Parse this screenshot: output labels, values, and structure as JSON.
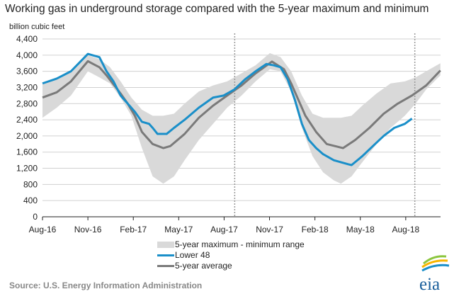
{
  "chart_data": {
    "type": "line",
    "title": "Working gas in underground storage compared with the 5-year maximum and minimum",
    "ylabel": "billion cubic feet",
    "xlabel": "",
    "x_units": "months since Aug-2016",
    "xlim": [
      0,
      26.3
    ],
    "ylim": [
      0,
      4400
    ],
    "yticks": [
      0,
      400,
      800,
      1200,
      1600,
      2000,
      2400,
      2800,
      3200,
      3600,
      4000,
      4400
    ],
    "ytick_labels": [
      "0",
      "400",
      "800",
      "1,200",
      "1,600",
      "2,000",
      "2,400",
      "2,800",
      "3,200",
      "3,600",
      "4,000",
      "4,400"
    ],
    "xticks": [
      0,
      3,
      6,
      9,
      12,
      15,
      18,
      21,
      24
    ],
    "xtick_labels": [
      "Aug-16",
      "Nov-16",
      "Feb-17",
      "May-17",
      "Aug-17",
      "Nov-17",
      "Feb-18",
      "May-18",
      "Aug-18"
    ],
    "grid": "horizontal",
    "reference_lines_x": [
      12.7,
      24.6
    ],
    "legend": [
      "5-year maximum - minimum range",
      "Lower 48",
      "5-year average"
    ],
    "legend_placement": "bottom",
    "colors": {
      "range": "#d9d9d9",
      "lower48": "#1a8fc9",
      "avg": "#7a7a7a"
    },
    "range": {
      "x": [
        0,
        0.94,
        1.88,
        3.0,
        3.76,
        4.46,
        5.16,
        5.87,
        6.57,
        7.28,
        7.98,
        8.69,
        9.39,
        10.33,
        11.27,
        12.2,
        13.15,
        14.08,
        15.02,
        15.73,
        16.43,
        17.14,
        17.84,
        18.54,
        19.25,
        19.72,
        20.42,
        21.13,
        22.07,
        23.0,
        23.94,
        24.65,
        25.35,
        26.29
      ],
      "max": [
        3300,
        3400,
        3600,
        4000,
        3900,
        3700,
        3350,
        2950,
        2650,
        2500,
        2500,
        2550,
        2800,
        3100,
        3250,
        3350,
        3550,
        3750,
        4050,
        3950,
        3600,
        3000,
        2550,
        2450,
        2450,
        2450,
        2500,
        2750,
        3050,
        3300,
        3350,
        3450,
        3600,
        3800
      ],
      "min": [
        2450,
        2700,
        3000,
        3600,
        3450,
        3300,
        2950,
        2500,
        1700,
        1000,
        820,
        1000,
        1400,
        1900,
        2300,
        2700,
        3000,
        3350,
        3650,
        3600,
        3100,
        2200,
        1500,
        1100,
        900,
        820,
        1000,
        1350,
        1800,
        2200,
        2500,
        2800,
        3150,
        3500
      ]
    },
    "series": [
      {
        "name": "Lower 48",
        "x": [
          0,
          0.94,
          1.88,
          3.0,
          3.76,
          4.23,
          4.69,
          5.16,
          5.63,
          6.1,
          6.57,
          7.04,
          7.28,
          7.6,
          8.2,
          8.69,
          9.39,
          10.33,
          11.27,
          11.97,
          12.68,
          13.38,
          14.08,
          14.79,
          15.26,
          15.73,
          16.2,
          16.67,
          17.14,
          17.6,
          18.08,
          18.54,
          19.25,
          20.19,
          20.42,
          21.13,
          21.83,
          22.54,
          23.24,
          23.94,
          24.41
        ],
        "y": [
          3300,
          3420,
          3600,
          4030,
          3950,
          3600,
          3350,
          3000,
          2800,
          2600,
          2350,
          2300,
          2200,
          2050,
          2050,
          2200,
          2400,
          2700,
          2950,
          3000,
          3150,
          3400,
          3600,
          3780,
          3750,
          3700,
          3400,
          2900,
          2300,
          1900,
          1700,
          1550,
          1400,
          1300,
          1280,
          1500,
          1750,
          2000,
          2200,
          2300,
          2430
        ]
      },
      {
        "name": "5-year average",
        "x": [
          0,
          0.94,
          1.88,
          3.0,
          3.76,
          4.23,
          5.16,
          5.63,
          6.1,
          6.57,
          7.28,
          7.98,
          8.45,
          9.39,
          10.33,
          11.27,
          12.2,
          13.15,
          14.08,
          15.16,
          15.96,
          16.43,
          16.9,
          17.37,
          18.08,
          18.78,
          19.86,
          20.66,
          21.6,
          22.54,
          23.47,
          24.41,
          25.35,
          26.29
        ],
        "y": [
          2950,
          3080,
          3350,
          3850,
          3700,
          3500,
          3050,
          2800,
          2500,
          2100,
          1800,
          1700,
          1750,
          2050,
          2450,
          2750,
          3000,
          3250,
          3550,
          3840,
          3650,
          3300,
          2900,
          2500,
          2100,
          1800,
          1700,
          1900,
          2200,
          2550,
          2800,
          3000,
          3250,
          3620
        ]
      }
    ]
  },
  "source": "Source:  U.S. Energy Information Administration",
  "logo_text": "eia"
}
